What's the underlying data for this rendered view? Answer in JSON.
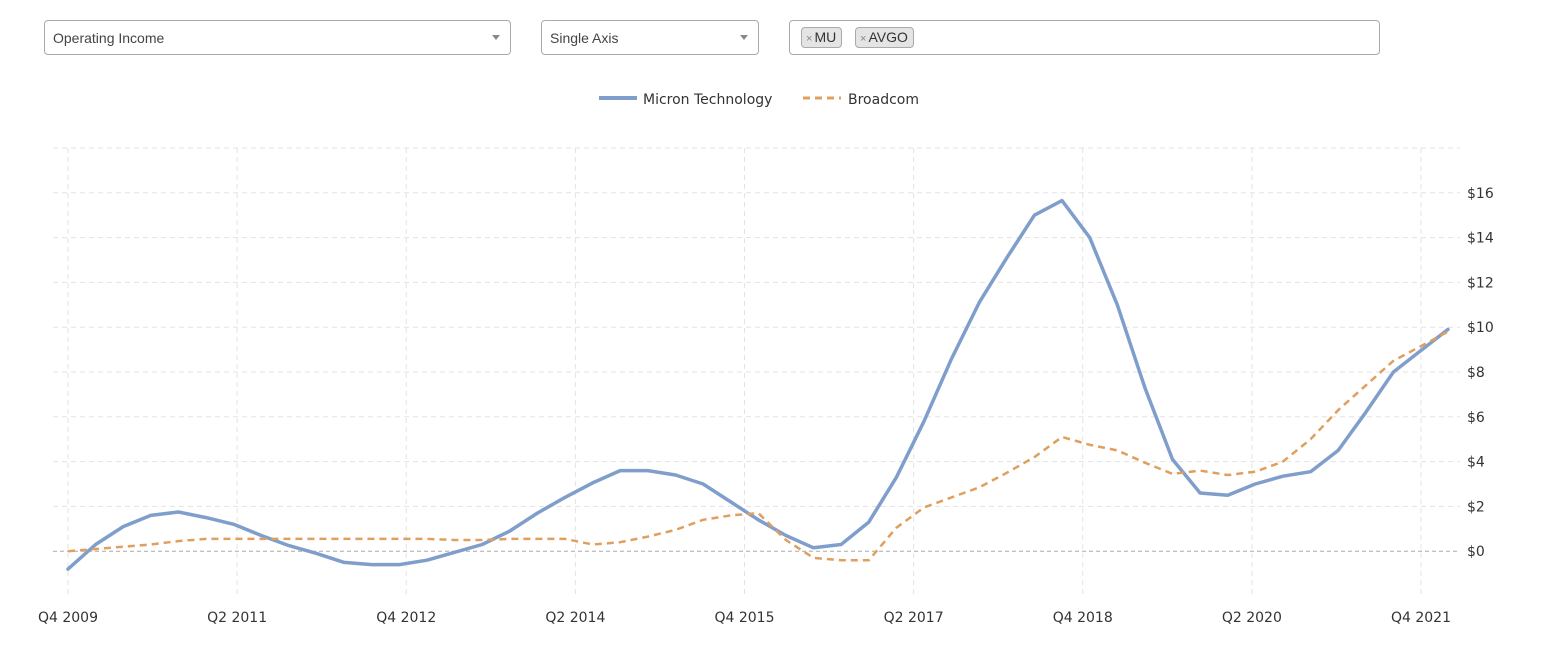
{
  "controls": {
    "metric": "Operating Income",
    "axis_mode": "Single Axis",
    "tickers": [
      "MU",
      "AVGO"
    ],
    "remove_symbol": "×"
  },
  "colors": {
    "micron": "#7f9ecb",
    "broadcom": "#df9f5e",
    "grid": "#e3e3e3",
    "zero_line": "#aaaaaa"
  },
  "chart_data": {
    "type": "line",
    "title": "",
    "xlabel": "",
    "ylabel": "",
    "x_labels": [
      "Q4 2009",
      "Q2 2011",
      "Q4 2012",
      "Q2 2014",
      "Q4 2015",
      "Q2 2017",
      "Q4 2018",
      "Q2 2020",
      "Q4 2021"
    ],
    "y_ticks": [
      "$0",
      "$2",
      "$4",
      "$6",
      "$8",
      "$10",
      "$12",
      "$14",
      "$16"
    ],
    "ylim": [
      -2,
      18
    ],
    "grid": true,
    "legend_position": "top-center",
    "series": [
      {
        "name": "Micron Technology",
        "style": "solid",
        "values": [
          -0.8,
          0.3,
          1.1,
          1.6,
          1.75,
          1.5,
          1.2,
          0.7,
          0.25,
          -0.1,
          -0.5,
          -0.6,
          -0.6,
          -0.4,
          -0.05,
          0.3,
          0.9,
          1.7,
          2.4,
          3.05,
          3.6,
          3.6,
          3.4,
          3.0,
          2.2,
          1.4,
          0.7,
          0.15,
          0.3,
          1.3,
          3.3,
          5.8,
          8.6,
          11.1,
          13.1,
          15.0,
          15.65,
          14.0,
          11.0,
          7.3,
          4.1,
          2.6,
          2.5,
          3.0,
          3.35,
          3.55,
          4.5,
          6.2,
          8.0,
          9.9
        ]
      },
      {
        "name": "Broadcom",
        "style": "dashed",
        "values": [
          0.0,
          0.1,
          0.2,
          0.3,
          0.45,
          0.55,
          0.55,
          0.55,
          0.55,
          0.55,
          0.55,
          0.55,
          0.55,
          0.55,
          0.5,
          0.5,
          0.55,
          0.55,
          0.55,
          0.3,
          0.4,
          0.65,
          0.95,
          1.4,
          1.6,
          1.7,
          0.5,
          -0.3,
          -0.4,
          -0.4,
          1.05,
          1.95,
          2.4,
          2.85,
          3.5,
          4.2,
          5.1,
          4.75,
          4.5,
          3.95,
          3.45,
          3.6,
          3.4,
          3.55,
          4.0,
          5.0,
          6.3,
          7.4,
          8.5,
          9.8
        ]
      }
    ]
  }
}
